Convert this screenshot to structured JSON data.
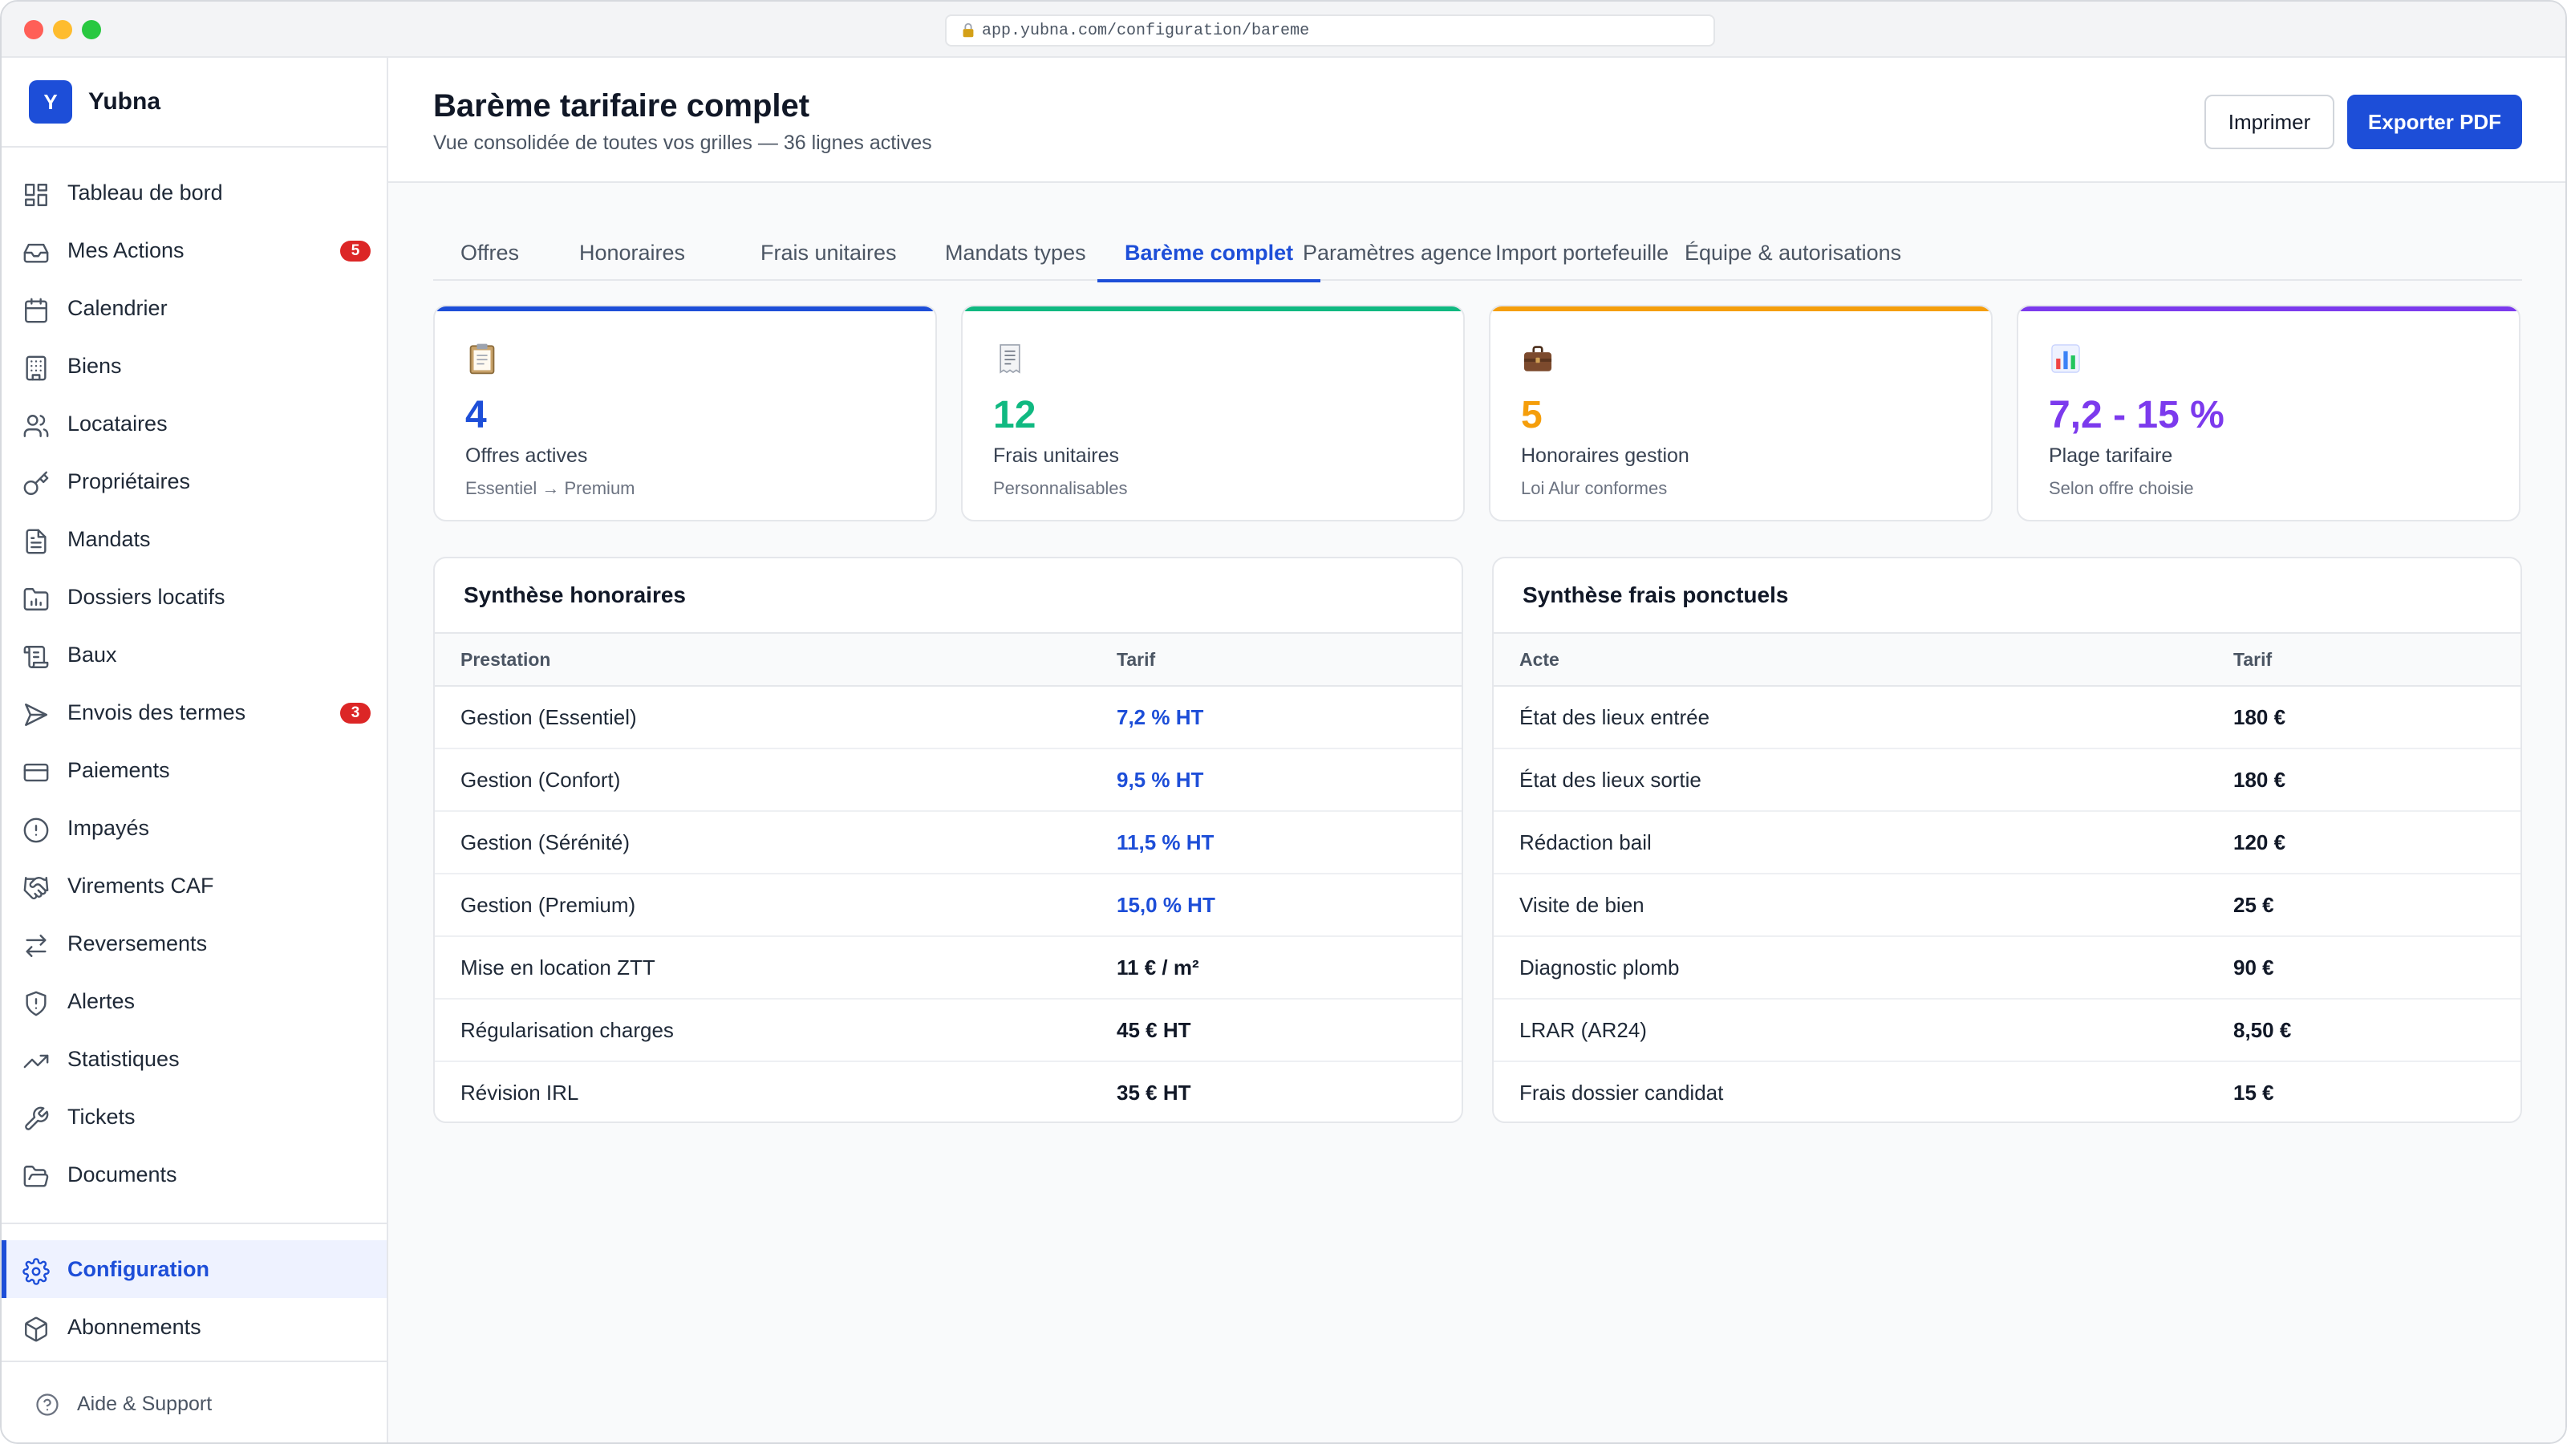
{
  "browser": {
    "url": "app.yubna.com/configuration/bareme"
  },
  "brand": {
    "logo_letter": "Y",
    "name": "Yubna"
  },
  "sidebar": {
    "items": [
      {
        "label": "Tableau de bord",
        "icon": "dashboard-icon"
      },
      {
        "label": "Mes Actions",
        "icon": "inbox-icon",
        "badge": "5"
      },
      {
        "label": "Calendrier",
        "icon": "calendar-icon"
      },
      {
        "label": "Biens",
        "icon": "building-icon"
      },
      {
        "label": "Locataires",
        "icon": "users-icon"
      },
      {
        "label": "Propriétaires",
        "icon": "key-icon"
      },
      {
        "label": "Mandats",
        "icon": "document-icon"
      },
      {
        "label": "Dossiers locatifs",
        "icon": "folder-icon"
      },
      {
        "label": "Baux",
        "icon": "scroll-icon"
      },
      {
        "label": "Envois des termes",
        "icon": "send-icon",
        "badge": "3"
      },
      {
        "label": "Paiements",
        "icon": "credit-card-icon"
      },
      {
        "label": "Impayés",
        "icon": "alert-circle-icon"
      },
      {
        "label": "Virements CAF",
        "icon": "handshake-icon"
      },
      {
        "label": "Reversements",
        "icon": "transfer-icon"
      },
      {
        "label": "Alertes",
        "icon": "shield-icon"
      },
      {
        "label": "Statistiques",
        "icon": "trending-up-icon"
      },
      {
        "label": "Tickets",
        "icon": "wrench-icon"
      },
      {
        "label": "Documents",
        "icon": "folder-open-icon"
      }
    ],
    "bottom_items": [
      {
        "label": "Configuration",
        "icon": "gear-icon",
        "active": true
      },
      {
        "label": "Abonnements",
        "icon": "package-icon"
      }
    ],
    "help_label": "Aide & Support"
  },
  "header": {
    "title": "Barème tarifaire complet",
    "subtitle": "Vue consolidée de toutes vos grilles — 36 lignes actives",
    "print_label": "Imprimer",
    "export_label": "Exporter PDF"
  },
  "tabs": [
    {
      "label": "Offres"
    },
    {
      "label": "Honoraires"
    },
    {
      "label": "Frais unitaires"
    },
    {
      "label": "Mandats types"
    },
    {
      "label": "Barème complet",
      "active": true
    },
    {
      "label": "Paramètres agence"
    },
    {
      "label": "Import portefeuille"
    },
    {
      "label": "Équipe & autorisations"
    }
  ],
  "kpis": [
    {
      "value": "4",
      "label": "Offres actives",
      "sub": "Essentiel → Premium",
      "color": "#1d4ed8",
      "icon": "clipboard-icon"
    },
    {
      "value": "12",
      "label": "Frais unitaires",
      "sub": "Personnalisables",
      "color": "#10b981",
      "icon": "receipt-icon"
    },
    {
      "value": "5",
      "label": "Honoraires gestion",
      "sub": "Loi Alur conformes",
      "color": "#f59e0b",
      "icon": "briefcase-icon"
    },
    {
      "value": "7,2 - 15 %",
      "label": "Plage tarifaire",
      "sub": "Selon offre choisie",
      "color": "#7c3aed",
      "icon": "bar-chart-icon"
    }
  ],
  "honoraires": {
    "title": "Synthèse honoraires",
    "col_prestation": "Prestation",
    "col_tarif": "Tarif",
    "rows": [
      {
        "name": "Gestion (Essentiel)",
        "price": "7,2 % HT",
        "highlight": true
      },
      {
        "name": "Gestion (Confort)",
        "price": "9,5 % HT",
        "highlight": true
      },
      {
        "name": "Gestion (Sérénité)",
        "price": "11,5 % HT",
        "highlight": true
      },
      {
        "name": "Gestion (Premium)",
        "price": "15,0 % HT",
        "highlight": true
      },
      {
        "name": "Mise en location ZTT",
        "price": "11 € / m²",
        "highlight": false
      },
      {
        "name": "Régularisation charges",
        "price": "45 € HT",
        "highlight": false
      },
      {
        "name": "Révision IRL",
        "price": "35 € HT",
        "highlight": false
      }
    ]
  },
  "frais": {
    "title": "Synthèse frais ponctuels",
    "col_acte": "Acte",
    "col_tarif": "Tarif",
    "rows": [
      {
        "name": "État des lieux entrée",
        "price": "180 €"
      },
      {
        "name": "État des lieux sortie",
        "price": "180 €"
      },
      {
        "name": "Rédaction bail",
        "price": "120 €"
      },
      {
        "name": "Visite de bien",
        "price": "25 €"
      },
      {
        "name": "Diagnostic plomb",
        "price": "90 €"
      },
      {
        "name": "LRAR (AR24)",
        "price": "8,50 €"
      },
      {
        "name": "Frais dossier candidat",
        "price": "15 €"
      }
    ]
  }
}
